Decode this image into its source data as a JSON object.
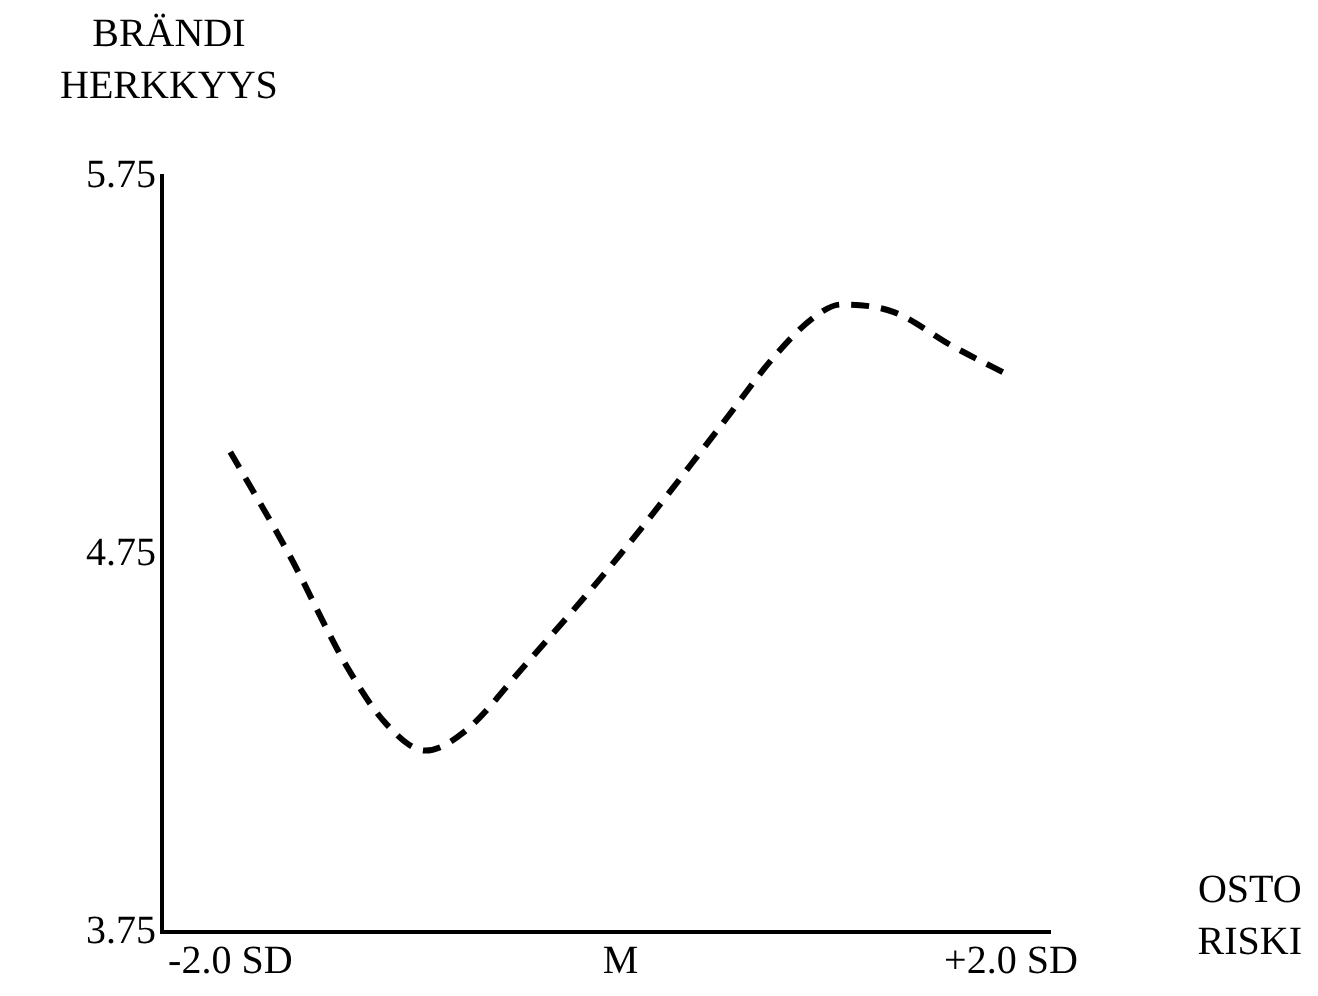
{
  "chart_data": {
    "type": "line",
    "xlabel": "OSTO RISKI",
    "ylabel": "BRÄNDI HERKKYYS",
    "x": [
      -2,
      -1.7,
      -1.4,
      -1.2,
      -1,
      -0.8,
      -0.5,
      0,
      0.5,
      0.8,
      1,
      1.13,
      1.4,
      1.7,
      2
    ],
    "series": [
      {
        "color": "#000000",
        "values": [
          5.02,
          4.75,
          4.45,
          4.3,
          4.23,
          4.28,
          4.45,
          4.75,
          5.08,
          5.28,
          5.38,
          5.41,
          5.39,
          5.3,
          5.22
        ]
      }
    ],
    "xlim": [
      -2.35,
      2.2
    ],
    "xticks": [
      {
        "value": -2,
        "label": "-2.0 SD"
      },
      {
        "value": 0,
        "label": "M"
      },
      {
        "value": 2,
        "label": "+2.0 SD"
      }
    ],
    "ylim": [
      3.75,
      5.75
    ],
    "yticks": [
      3.75,
      4.75,
      5.75
    ],
    "line_style": "dashed"
  }
}
